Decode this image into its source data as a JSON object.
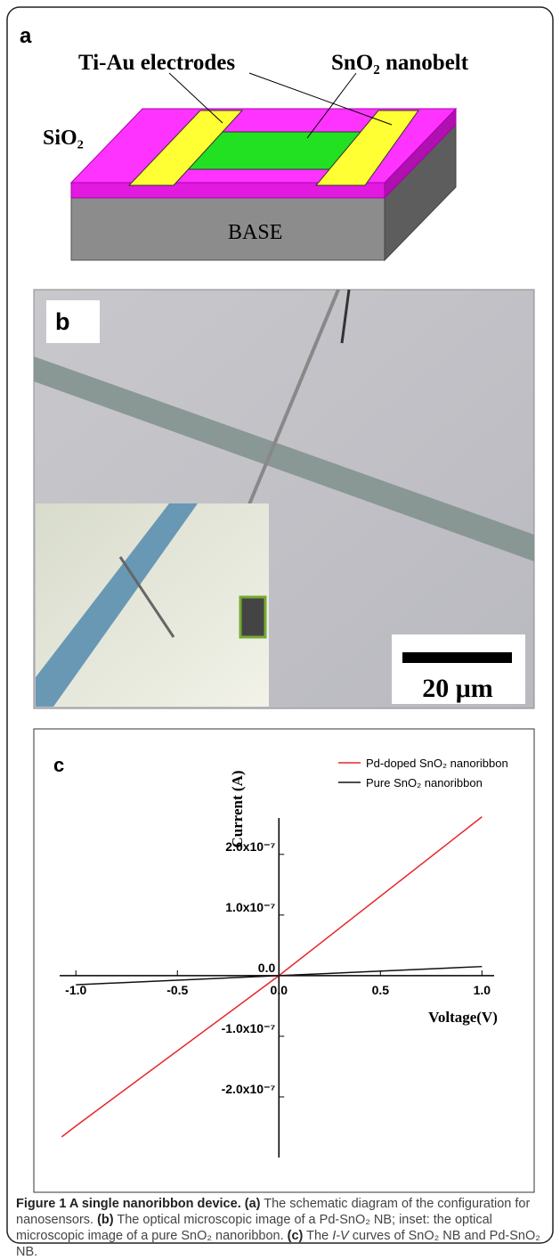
{
  "panel_a": {
    "label": "a",
    "electrodes": "Ti-Au electrodes",
    "nanobelt": "SnO₂ nanobelt",
    "oxide": "SiO₂",
    "base": "BASE"
  },
  "panel_b": {
    "label": "b",
    "scale_bar": "20 μm"
  },
  "chart_data": {
    "type": "line",
    "panel_label": "c",
    "x_label": "Voltage(V)",
    "y_label": "Current (A)",
    "x": [
      -1.07,
      -1.0,
      0,
      1.0
    ],
    "series": [
      {
        "name": "Pd-doped SnO₂ nanoribbon",
        "color": "#e8262a",
        "values": [
          -2.66e-07,
          -2.48e-07,
          0,
          2.62e-07
        ]
      },
      {
        "name": "Pure SnO₂ nanoribbon",
        "color": "#111111",
        "values": [
          null,
          -1.5e-08,
          0,
          1.5e-08
        ]
      }
    ],
    "xlim": [
      -1.08,
      1.06
    ],
    "ylim": [
      -3e-07,
      2.6e-07
    ],
    "xticks": [
      {
        "value": -1,
        "label": "-1.0"
      },
      -0.5,
      {
        "value": 0,
        "label": "0.0"
      },
      0.5,
      {
        "value": 1,
        "label": "1.0"
      }
    ],
    "yticks": [
      {
        "value": -2e-07,
        "label": "-2.0x10⁻⁷"
      },
      {
        "value": -1e-07,
        "label": "-1.0x10⁻⁷"
      },
      {
        "value": 0,
        "label": "0.0"
      },
      {
        "value": 1e-07,
        "label": "1.0x10⁻⁷"
      },
      {
        "value": 2e-07,
        "label": "2.0x10⁻⁷"
      }
    ],
    "legend": "upper right"
  },
  "caption": {
    "title": "Figure 1 A single nanoribbon device.",
    "a_label": "(a)",
    "a_text": "The schematic diagram of the configuration for nanosensors.",
    "b_label": "(b)",
    "b_text": "The optical microscopic image of a Pd-SnO₂ NB; inset: the optical microscopic image of a pure SnO₂ nanoribbon.",
    "c_label": "(c)",
    "c_text_1": "The",
    "c_text_2": "I-V",
    "c_text_3": "curves of SnO₂ NB and Pd-SnO₂ NB."
  }
}
